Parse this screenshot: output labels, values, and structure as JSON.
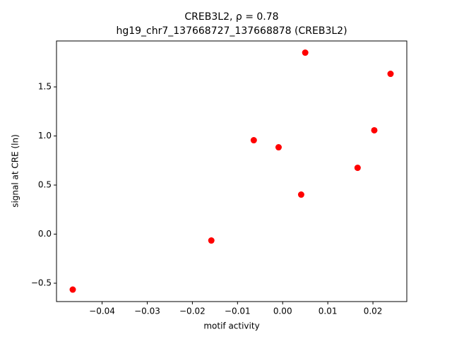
{
  "chart_data": {
    "type": "scatter",
    "title": "CREB3L2, ρ = 0.78",
    "subtitle": "hg19_chr7_137668727_137668878 (CREB3L2)",
    "x_label": "motif activity",
    "y_label": "signal at CRE (ln)",
    "color": "#ff0000",
    "x": [
      -0.0465,
      -0.0158,
      -0.0064,
      -0.0009,
      0.0041,
      0.005,
      0.0166,
      0.0203,
      0.0239
    ],
    "values": [
      -0.565,
      -0.065,
      0.957,
      0.885,
      0.403,
      1.849,
      0.676,
      1.058,
      1.633
    ],
    "xlim": [
      -0.0501,
      0.0275
    ],
    "ylim": [
      -0.687,
      1.968
    ],
    "xticks": [
      {
        "value": -0.04,
        "label": "−0.04"
      },
      {
        "value": -0.03,
        "label": "−0.03"
      },
      {
        "value": -0.02,
        "label": "−0.02"
      },
      {
        "value": -0.01,
        "label": "−0.01"
      },
      {
        "value": 0,
        "label": "0.00"
      },
      0.01,
      0.02
    ],
    "yticks": [
      {
        "value": -0.5,
        "label": "−0.5"
      },
      {
        "value": 0,
        "label": "0.0"
      },
      0.5,
      {
        "value": 1,
        "label": "1.0"
      },
      1.5
    ],
    "grid": false
  }
}
